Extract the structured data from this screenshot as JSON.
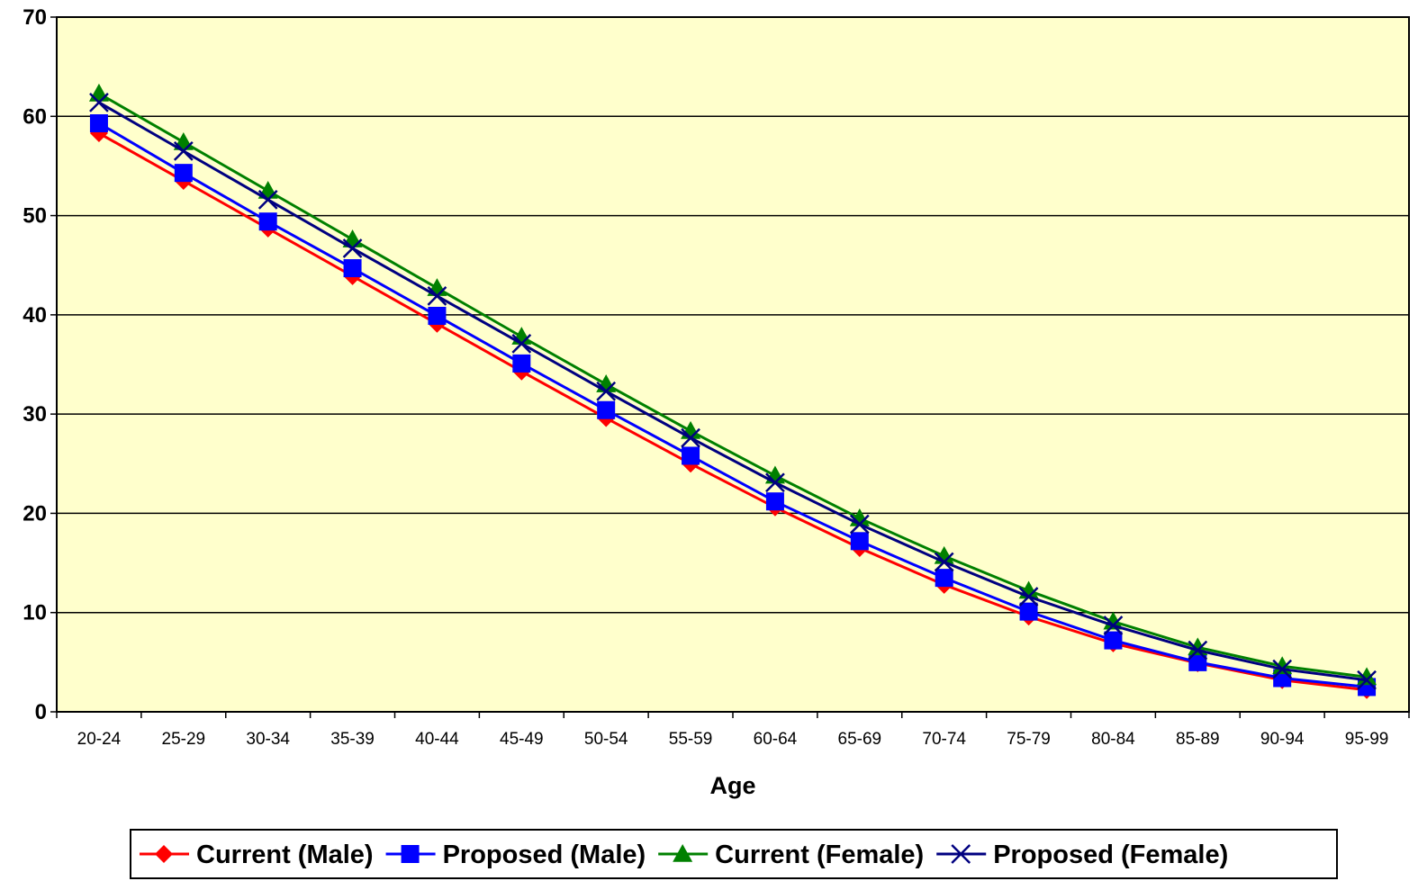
{
  "chart_data": {
    "type": "line",
    "xlabel": "Age",
    "ylabel": "",
    "ylim": [
      0,
      70
    ],
    "yticks": [
      0,
      10,
      20,
      30,
      40,
      50,
      60,
      70
    ],
    "grid": "horizontal",
    "legend_position": "bottom",
    "plot_background": "#FFFFCC",
    "categories": [
      "20-24",
      "25-29",
      "30-34",
      "35-39",
      "40-44",
      "45-49",
      "50-54",
      "55-59",
      "60-64",
      "65-69",
      "70-74",
      "75-79",
      "80-84",
      "85-89",
      "90-94",
      "95-99"
    ],
    "series": [
      {
        "name": "Current (Male)",
        "color": "#FF0000",
        "marker": "diamond",
        "values": [
          58.3,
          53.5,
          48.7,
          43.9,
          39.1,
          34.3,
          29.6,
          25.0,
          20.6,
          16.5,
          12.8,
          9.6,
          6.9,
          4.9,
          3.2,
          2.2
        ]
      },
      {
        "name": "Proposed (Male)",
        "color": "#0000FF",
        "marker": "square",
        "values": [
          59.3,
          54.3,
          49.4,
          44.7,
          39.9,
          35.1,
          30.4,
          25.8,
          21.2,
          17.2,
          13.5,
          10.1,
          7.2,
          5.0,
          3.4,
          2.5
        ]
      },
      {
        "name": "Current (Female)",
        "color": "#008000",
        "marker": "triangle",
        "values": [
          62.3,
          57.4,
          52.5,
          47.6,
          42.7,
          37.8,
          33.0,
          28.3,
          23.8,
          19.5,
          15.7,
          12.2,
          9.1,
          6.5,
          4.6,
          3.5
        ]
      },
      {
        "name": "Proposed (Female)",
        "color": "#000080",
        "marker": "x",
        "values": [
          61.4,
          56.5,
          51.6,
          46.7,
          41.9,
          37.1,
          32.3,
          27.6,
          23.1,
          18.9,
          15.1,
          11.6,
          8.7,
          6.2,
          4.3,
          3.2
        ]
      }
    ]
  }
}
